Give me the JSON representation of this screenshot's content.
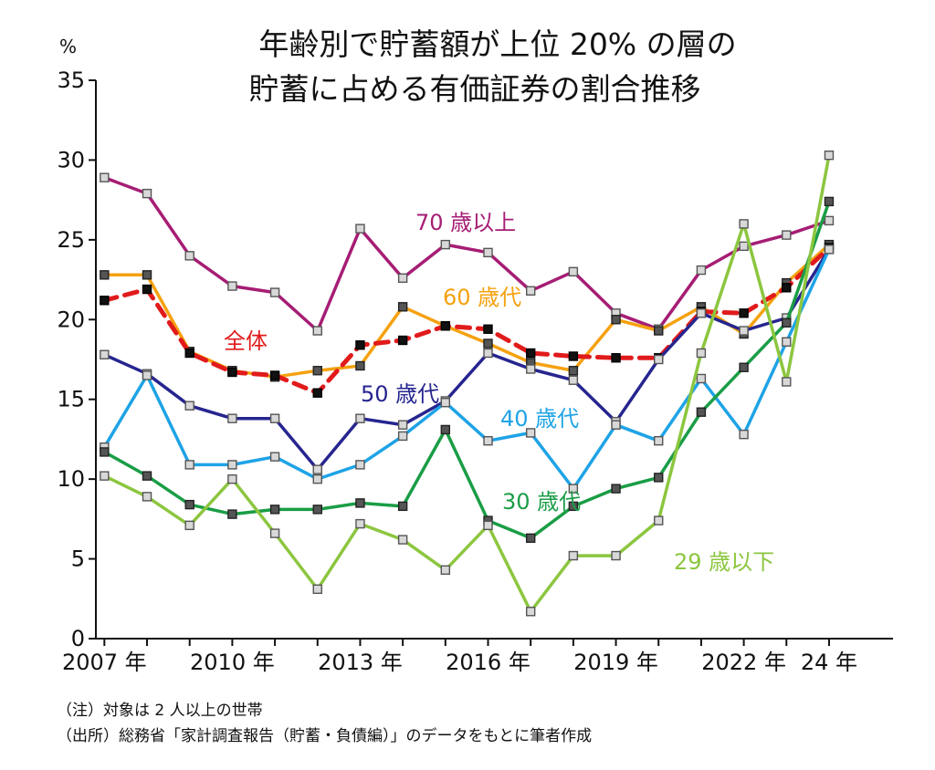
{
  "chart_data": {
    "type": "line",
    "title_lines": [
      "年齢別で貯蓄額が上位 20% の層の",
      "貯蓄に占める有価証券の割合推移"
    ],
    "y_unit": "%",
    "ylim": [
      0,
      35
    ],
    "y_ticks": [
      "0",
      "5",
      "10",
      "15",
      "20",
      "25",
      "30",
      "35"
    ],
    "x_range": [
      2006.8,
      2025.5
    ],
    "x": [
      2007,
      2008,
      2009,
      2010,
      2011,
      2012,
      2013,
      2014,
      2015,
      2016,
      2017,
      2018,
      2019,
      2020,
      2021,
      2022,
      2023,
      2024
    ],
    "x_tick_labels": [
      {
        "x": 2007,
        "label": "2007 年"
      },
      {
        "x": 2010,
        "label": "2010 年"
      },
      {
        "x": 2013,
        "label": "2013 年"
      },
      {
        "x": 2016,
        "label": "2016 年"
      },
      {
        "x": 2019,
        "label": "2019 年"
      },
      {
        "x": 2022,
        "label": "2022 年"
      },
      {
        "x": 2024,
        "label": "24 年"
      }
    ],
    "grid": false,
    "legend": "inline labels",
    "series": [
      {
        "name": "70 歳以上",
        "color": "#a61d74",
        "dashed": false,
        "marker": "light",
        "values": [
          28.9,
          27.9,
          24.0,
          22.1,
          21.7,
          19.3,
          25.7,
          22.6,
          24.7,
          24.2,
          21.8,
          23.0,
          20.4,
          19.4,
          23.1,
          24.6,
          25.3,
          26.2
        ]
      },
      {
        "name": "60 歳代",
        "color": "#f5a10f",
        "dashed": false,
        "marker": "dark",
        "values": [
          22.8,
          22.8,
          18.0,
          16.8,
          16.4,
          16.8,
          17.1,
          20.8,
          19.6,
          18.5,
          17.3,
          16.8,
          20.0,
          19.3,
          20.8,
          19.1,
          22.3,
          24.7
        ]
      },
      {
        "name": "全体",
        "color": "#e11b1b",
        "dashed": true,
        "marker": "black",
        "values": [
          21.2,
          21.9,
          17.9,
          16.7,
          16.5,
          15.4,
          18.4,
          18.7,
          19.6,
          19.4,
          17.9,
          17.7,
          17.6,
          17.6,
          20.5,
          20.4,
          22.0,
          24.5
        ]
      },
      {
        "name": "50 歳代",
        "color": "#26258f",
        "dashed": false,
        "marker": "light",
        "values": [
          17.8,
          16.6,
          14.6,
          13.8,
          13.8,
          10.6,
          13.8,
          13.4,
          14.9,
          17.9,
          16.9,
          16.2,
          13.6,
          17.5,
          20.4,
          19.3,
          20.1,
          24.4
        ]
      },
      {
        "name": "40 歳代",
        "color": "#1ea3e6",
        "dashed": false,
        "marker": "light",
        "values": [
          12.0,
          16.5,
          10.9,
          10.9,
          11.4,
          10.0,
          10.9,
          12.7,
          14.8,
          12.4,
          12.9,
          9.4,
          13.4,
          12.4,
          16.3,
          12.8,
          18.6,
          24.4
        ]
      },
      {
        "name": "30 歳代",
        "color": "#1a9d46",
        "dashed": false,
        "marker": "dark",
        "values": [
          11.7,
          10.2,
          8.4,
          7.8,
          8.1,
          8.1,
          8.5,
          8.3,
          13.1,
          7.4,
          6.3,
          8.3,
          9.4,
          10.1,
          14.2,
          17.0,
          19.8,
          27.4
        ]
      },
      {
        "name": "29 歳以下",
        "color": "#8cc63f",
        "dashed": false,
        "marker": "light",
        "values": [
          10.2,
          8.9,
          7.1,
          10.0,
          6.6,
          3.1,
          7.2,
          6.2,
          4.3,
          7.1,
          1.7,
          5.2,
          5.2,
          7.4,
          17.9,
          26.0,
          16.1,
          30.3
        ]
      }
    ],
    "annotations": [
      {
        "text": "70 歳以上",
        "color": "#a61d74"
      },
      {
        "text": "60 歳代",
        "color": "#f5a10f"
      },
      {
        "text": "全体",
        "color": "#e11b1b"
      },
      {
        "text": "50 歳代",
        "color": "#26258f"
      },
      {
        "text": "40 歳代",
        "color": "#1ea3e6"
      },
      {
        "text": "30 歳代",
        "color": "#1a9d46"
      },
      {
        "text": "29 歳以下",
        "color": "#8cc63f"
      }
    ]
  },
  "footnotes": {
    "note": "（注）対象は 2 人以上の世帯",
    "source": "（出所）総務省「家計調査報告（貯蓄・負債編）」のデータをもとに筆者作成"
  }
}
